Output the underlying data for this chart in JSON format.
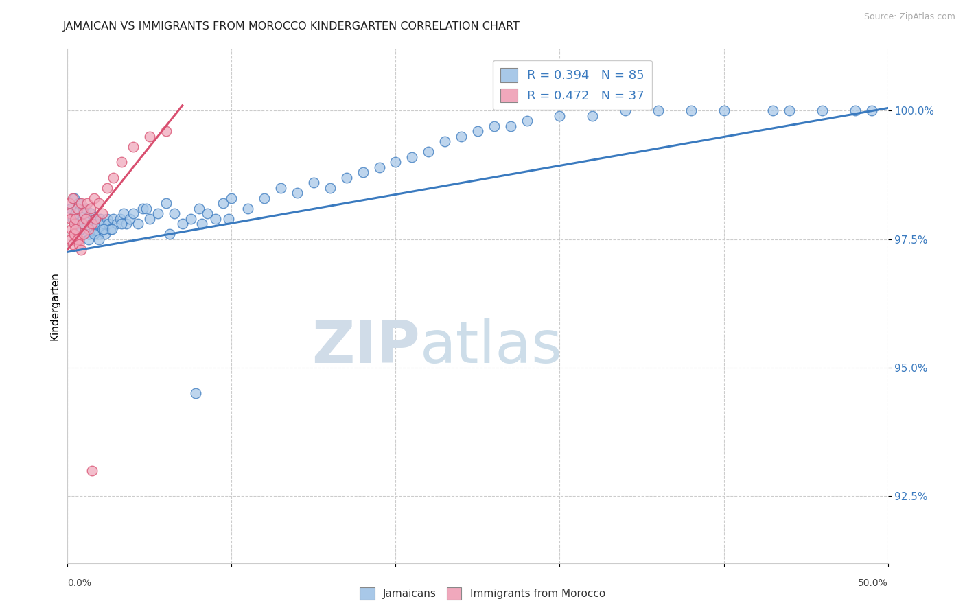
{
  "title": "JAMAICAN VS IMMIGRANTS FROM MOROCCO KINDERGARTEN CORRELATION CHART",
  "source": "Source: ZipAtlas.com",
  "ylabel": "Kindergarten",
  "y_ticks": [
    92.5,
    95.0,
    97.5,
    100.0
  ],
  "y_tick_labels": [
    "92.5%",
    "95.0%",
    "97.5%",
    "100.0%"
  ],
  "xlim": [
    0.0,
    50.0
  ],
  "ylim": [
    91.2,
    101.2
  ],
  "legend_blue_r": "R = 0.394",
  "legend_blue_n": "N = 85",
  "legend_pink_r": "R = 0.472",
  "legend_pink_n": "N = 37",
  "legend_label_blue": "Jamaicans",
  "legend_label_pink": "Immigrants from Morocco",
  "blue_color": "#a8c8e8",
  "pink_color": "#f0a8bc",
  "trendline_blue": "#3a7abf",
  "trendline_pink": "#d94f70",
  "watermark_zip": "ZIP",
  "watermark_atlas": "atlas",
  "blue_scatter_x": [
    0.2,
    0.3,
    0.4,
    0.5,
    0.6,
    0.7,
    0.8,
    0.9,
    1.0,
    1.1,
    1.2,
    1.3,
    1.4,
    1.5,
    1.6,
    1.7,
    1.8,
    1.9,
    2.0,
    2.1,
    2.2,
    2.3,
    2.4,
    2.5,
    2.6,
    2.8,
    3.0,
    3.2,
    3.4,
    3.6,
    3.8,
    4.0,
    4.3,
    4.6,
    5.0,
    5.5,
    6.0,
    6.5,
    7.0,
    7.5,
    8.0,
    8.5,
    9.0,
    9.5,
    10.0,
    11.0,
    12.0,
    13.0,
    14.0,
    15.0,
    16.0,
    17.0,
    18.0,
    19.0,
    20.0,
    21.0,
    22.0,
    23.0,
    24.0,
    25.0,
    26.0,
    27.0,
    28.0,
    30.0,
    32.0,
    34.0,
    36.0,
    38.0,
    40.0,
    43.0,
    44.0,
    46.0,
    48.0,
    49.0,
    1.3,
    1.6,
    1.9,
    2.2,
    2.7,
    3.3,
    4.8,
    6.2,
    7.8,
    8.2,
    9.8
  ],
  "blue_scatter_y": [
    98.1,
    97.9,
    98.3,
    98.0,
    97.8,
    98.2,
    97.7,
    98.0,
    97.8,
    98.1,
    97.9,
    97.6,
    98.0,
    97.8,
    97.7,
    97.9,
    97.8,
    97.6,
    97.9,
    97.7,
    97.8,
    97.6,
    97.9,
    97.8,
    97.7,
    97.9,
    97.8,
    97.9,
    98.0,
    97.8,
    97.9,
    98.0,
    97.8,
    98.1,
    97.9,
    98.0,
    98.2,
    98.0,
    97.8,
    97.9,
    98.1,
    98.0,
    97.9,
    98.2,
    98.3,
    98.1,
    98.3,
    98.5,
    98.4,
    98.6,
    98.5,
    98.7,
    98.8,
    98.9,
    99.0,
    99.1,
    99.2,
    99.4,
    99.5,
    99.6,
    99.7,
    99.7,
    99.8,
    99.9,
    99.9,
    100.0,
    100.0,
    100.0,
    100.0,
    100.0,
    100.0,
    100.0,
    100.0,
    100.0,
    97.5,
    97.6,
    97.5,
    97.7,
    97.7,
    97.8,
    98.1,
    97.6,
    94.5,
    97.8,
    97.9
  ],
  "pink_scatter_x": [
    0.1,
    0.15,
    0.2,
    0.25,
    0.3,
    0.35,
    0.4,
    0.5,
    0.6,
    0.7,
    0.8,
    0.9,
    1.0,
    1.1,
    1.2,
    1.3,
    1.4,
    1.5,
    1.6,
    1.7,
    1.9,
    2.1,
    2.4,
    2.8,
    3.3,
    4.0,
    5.0,
    6.0,
    0.2,
    0.3,
    0.4,
    0.5,
    0.6,
    0.7,
    0.8,
    1.0,
    1.5
  ],
  "pink_scatter_y": [
    98.2,
    98.0,
    97.9,
    97.7,
    98.3,
    97.6,
    97.8,
    97.9,
    98.1,
    97.5,
    98.2,
    97.8,
    98.0,
    97.9,
    98.2,
    97.7,
    98.1,
    97.8,
    98.3,
    97.9,
    98.2,
    98.0,
    98.5,
    98.7,
    99.0,
    99.3,
    99.5,
    99.6,
    97.5,
    97.4,
    97.6,
    97.7,
    97.5,
    97.4,
    97.3,
    97.6,
    93.0
  ],
  "blue_trend_x": [
    0.0,
    50.0
  ],
  "blue_trend_y": [
    97.25,
    100.05
  ],
  "pink_trend_x": [
    0.0,
    7.0
  ],
  "pink_trend_y": [
    97.3,
    100.1
  ]
}
